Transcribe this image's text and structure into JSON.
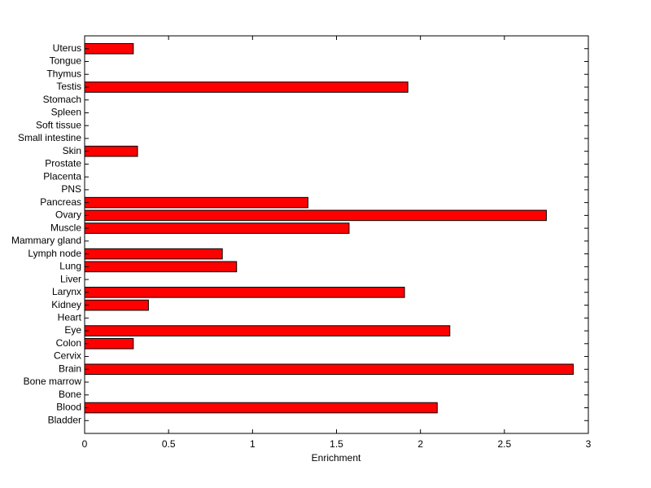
{
  "chart_data": {
    "type": "barh",
    "xlabel": "Enrichment",
    "categories": [
      "Bladder",
      "Blood",
      "Bone",
      "Bone marrow",
      "Brain",
      "Cervix",
      "Colon",
      "Eye",
      "Heart",
      "Kidney",
      "Larynx",
      "Liver",
      "Lung",
      "Lymph node",
      "Mammary gland",
      "Muscle",
      "Ovary",
      "Pancreas",
      "PNS",
      "Placenta",
      "Prostate",
      "Skin",
      "Small intestine",
      "Soft tissue",
      "Spleen",
      "Stomach",
      "Testis",
      "Thymus",
      "Tongue",
      "Uterus"
    ],
    "values": [
      0,
      2.1,
      0,
      0,
      2.91,
      0,
      0.29,
      2.175,
      0,
      0.38,
      1.905,
      0,
      0.905,
      0.82,
      0,
      1.575,
      2.75,
      1.33,
      0,
      0,
      0,
      0.315,
      0,
      0,
      0,
      0,
      1.925,
      0,
      0,
      0.29
    ],
    "color": "#ff0000",
    "xlim": [
      0,
      3
    ],
    "xticks": [
      0,
      0.5,
      1,
      1.5,
      2,
      2.5,
      3
    ]
  }
}
